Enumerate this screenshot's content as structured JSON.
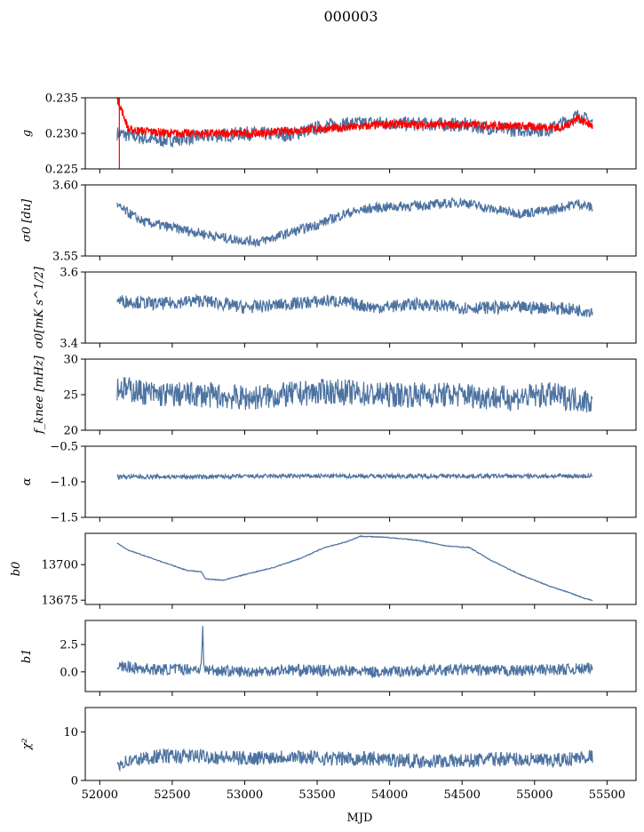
{
  "figure": {
    "title": "000003",
    "xlabel": "MJD",
    "x_ticks": [
      52000,
      52500,
      53000,
      53500,
      54000,
      54500,
      55000,
      55500
    ],
    "x_tick_labels": [
      "52000",
      "52500",
      "53000",
      "53500",
      "54000",
      "54500",
      "55000",
      "55500"
    ],
    "xlim": [
      51900,
      55700
    ]
  },
  "colors": {
    "series": "#4c72a0",
    "fit": "#ff0000",
    "axis": "#000000"
  },
  "chart_data": [
    {
      "type": "line",
      "ylabel": "g",
      "ylim": [
        0.225,
        0.235
      ],
      "y_tick_labels": [
        "0.225",
        "0.230",
        "0.235"
      ],
      "y_ticks": [
        0.225,
        0.23,
        0.235
      ],
      "series": [
        {
          "color": "#4c72a0",
          "x": [
            52120,
            52400,
            52700,
            53000,
            53300,
            53600,
            53900,
            54200,
            54500,
            54800,
            55100,
            55300,
            55400
          ],
          "y": [
            0.23,
            0.229,
            0.2295,
            0.23,
            0.2298,
            0.2312,
            0.2315,
            0.2313,
            0.2312,
            0.2305,
            0.2305,
            0.2325,
            0.2315
          ]
        },
        {
          "color": "#ff0000",
          "x": [
            52120,
            52200,
            52500,
            52800,
            53100,
            53400,
            53700,
            54000,
            54300,
            54600,
            54900,
            55200,
            55300,
            55400
          ],
          "y": [
            0.235,
            0.2305,
            0.23,
            0.23,
            0.23,
            0.2305,
            0.2308,
            0.2313,
            0.2312,
            0.2312,
            0.231,
            0.2308,
            0.2322,
            0.231
          ]
        }
      ]
    },
    {
      "type": "line",
      "ylabel": "σ0 [du]",
      "ylim": [
        3.55,
        3.6
      ],
      "y_tick_labels": [
        "3.55",
        "3.60"
      ],
      "y_ticks": [
        3.55,
        3.6
      ],
      "series": [
        {
          "color": "#4c72a0",
          "x": [
            52120,
            52300,
            52600,
            52900,
            53100,
            53300,
            53500,
            53700,
            53900,
            54100,
            54300,
            54500,
            54700,
            54900,
            55100,
            55300,
            55400
          ],
          "y": [
            3.585,
            3.574,
            3.568,
            3.562,
            3.56,
            3.566,
            3.572,
            3.58,
            3.584,
            3.585,
            3.586,
            3.588,
            3.583,
            3.58,
            3.582,
            3.587,
            3.584
          ]
        }
      ]
    },
    {
      "type": "line",
      "ylabel": "σ0[mK s^1/2]",
      "ylim": [
        3.4,
        3.6
      ],
      "y_tick_labels": [
        "3.4",
        "3.6"
      ],
      "y_ticks": [
        3.4,
        3.6
      ],
      "series": [
        {
          "color": "#4c72a0",
          "x": [
            52120,
            52400,
            52700,
            53000,
            53300,
            53600,
            53900,
            54200,
            54500,
            54800,
            55100,
            55400
          ],
          "y": [
            3.52,
            3.51,
            3.52,
            3.5,
            3.51,
            3.52,
            3.5,
            3.51,
            3.5,
            3.5,
            3.5,
            3.49
          ]
        }
      ]
    },
    {
      "type": "line",
      "ylabel": "f_knee [mHz]",
      "ylim": [
        20,
        30
      ],
      "y_tick_labels": [
        "20",
        "25",
        "30"
      ],
      "y_ticks": [
        20,
        25,
        30
      ],
      "series": [
        {
          "color": "#4c72a0",
          "x": [
            52120,
            52400,
            52700,
            53000,
            53300,
            53600,
            53900,
            54200,
            54500,
            54800,
            55100,
            55400
          ],
          "y": [
            26,
            25,
            25,
            24.5,
            25,
            25.5,
            25,
            25,
            25,
            24.5,
            25,
            24
          ]
        }
      ]
    },
    {
      "type": "line",
      "ylabel": "α",
      "ylim": [
        -1.5,
        -0.5
      ],
      "y_tick_labels": [
        "−1.5",
        "−1.0",
        "−0.5"
      ],
      "y_ticks": [
        -1.5,
        -1.0,
        -0.5
      ],
      "series": [
        {
          "color": "#4c72a0",
          "x": [
            52120,
            52700,
            53300,
            53900,
            54500,
            55100,
            55400
          ],
          "y": [
            -0.93,
            -0.93,
            -0.92,
            -0.92,
            -0.92,
            -0.92,
            -0.92
          ]
        }
      ]
    },
    {
      "type": "line",
      "ylabel": "b0",
      "ylim": [
        13672,
        13722
      ],
      "y_tick_labels": [
        "13675",
        "13700"
      ],
      "y_ticks": [
        13675,
        13700
      ],
      "series": [
        {
          "color": "#4c72a0",
          "x": [
            52120,
            52200,
            52400,
            52600,
            52700,
            52730,
            52850,
            53000,
            53200,
            53400,
            53550,
            53700,
            53800,
            54000,
            54200,
            54400,
            54550,
            54700,
            54900,
            55100,
            55250,
            55350,
            55400
          ],
          "y": [
            13715,
            13710,
            13703,
            13696,
            13695,
            13690,
            13689,
            13693,
            13698,
            13705,
            13712,
            13716,
            13720,
            13719,
            13717,
            13713,
            13712,
            13703,
            13693,
            13685,
            13680,
            13676,
            13675
          ]
        }
      ]
    },
    {
      "type": "line",
      "ylabel": "b1",
      "ylim": [
        -1.8,
        4.7
      ],
      "y_tick_labels": [
        "0.0",
        "2.5"
      ],
      "y_ticks": [
        0.0,
        2.5
      ],
      "series": [
        {
          "color": "#4c72a0",
          "x": [
            52120,
            52400,
            52700,
            52710,
            52720,
            53000,
            53300,
            53600,
            53900,
            54200,
            54500,
            54800,
            55100,
            55400
          ],
          "y": [
            0.5,
            0.2,
            0.3,
            4.0,
            0.2,
            0.0,
            0.2,
            0.1,
            0.0,
            0.1,
            0.2,
            0.1,
            0.2,
            0.3
          ]
        }
      ]
    },
    {
      "type": "line",
      "ylabel": "χ²",
      "ylim": [
        0,
        15
      ],
      "y_tick_labels": [
        "0",
        "10"
      ],
      "y_ticks": [
        0,
        10
      ],
      "series": [
        {
          "color": "#4c72a0",
          "x": [
            52120,
            52400,
            52700,
            53000,
            53300,
            53600,
            53900,
            54200,
            54500,
            54800,
            55100,
            55400
          ],
          "y": [
            3.5,
            5.0,
            5.0,
            4.5,
            5.0,
            4.5,
            4.5,
            4.0,
            4.0,
            4.5,
            4.0,
            5.0
          ]
        }
      ]
    }
  ]
}
